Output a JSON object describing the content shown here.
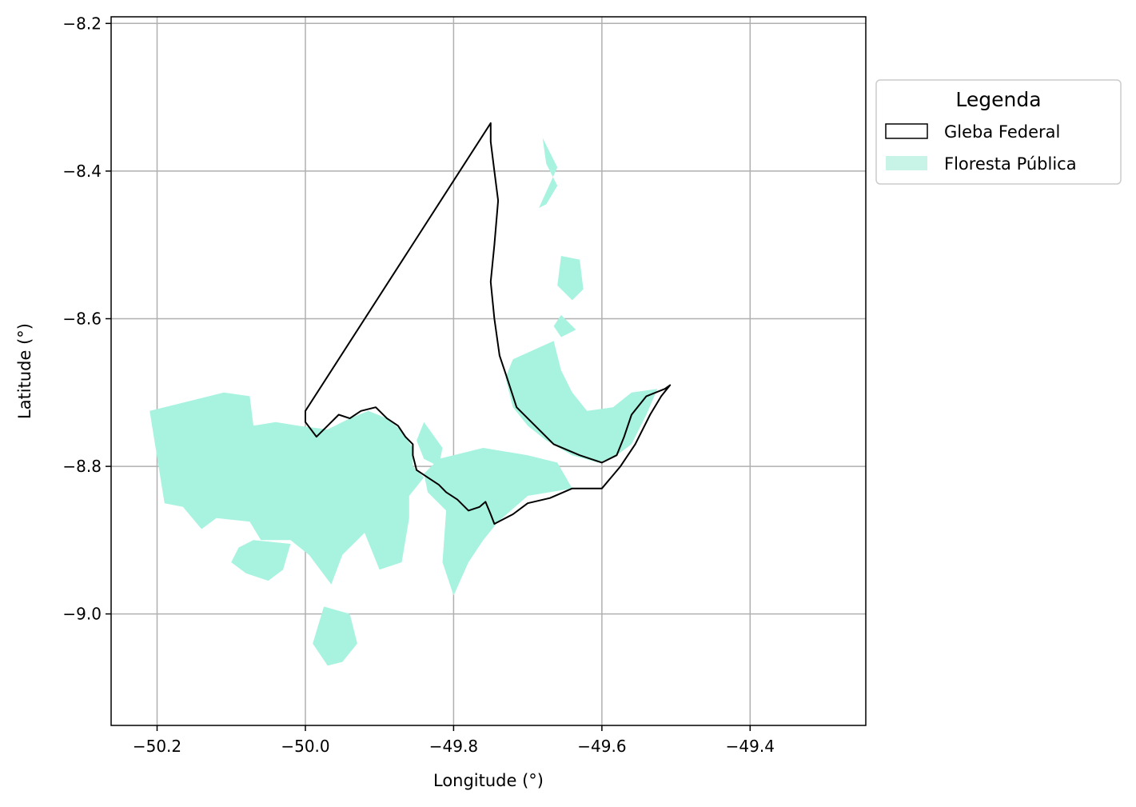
{
  "chart_data": {
    "type": "map",
    "xlabel": "Longitude (°)",
    "ylabel": "Latitude (°)",
    "xlim": [
      -50.262,
      -49.244
    ],
    "ylim": [
      -9.151,
      -8.191
    ],
    "xticks": [
      {
        "value": -50.2,
        "label": "−50.2"
      },
      {
        "value": -50.0,
        "label": "−50.0"
      },
      {
        "value": -49.8,
        "label": "−49.8"
      },
      {
        "value": -49.6,
        "label": "−49.6"
      },
      {
        "value": -49.4,
        "label": "−49.4"
      }
    ],
    "yticks": [
      {
        "value": -8.2,
        "label": "−8.2"
      },
      {
        "value": -8.4,
        "label": "−8.4"
      },
      {
        "value": -8.6,
        "label": "−8.6"
      },
      {
        "value": -8.8,
        "label": "−8.8"
      },
      {
        "value": -9.0,
        "label": "−9.0"
      }
    ],
    "grid": true,
    "legend": {
      "title": "Legenda",
      "placement": "outside-right-top",
      "entries": [
        {
          "label": "Gleba Federal",
          "kind": "outline",
          "edge": "#000000",
          "fill": "#ffffff"
        },
        {
          "label": "Floresta Pública",
          "kind": "fill",
          "fill": "#c8f4e7"
        }
      ]
    },
    "layers": [
      {
        "name": "Gleba Federal",
        "style": {
          "fill": "none",
          "stroke": "#000000"
        },
        "polygons": [
          [
            [
              -50.0,
              -8.725
            ],
            [
              -49.75,
              -8.335
            ],
            [
              -49.75,
              -8.36
            ],
            [
              -49.745,
              -8.4
            ],
            [
              -49.74,
              -8.44
            ],
            [
              -49.745,
              -8.5
            ],
            [
              -49.75,
              -8.55
            ],
            [
              -49.745,
              -8.6
            ],
            [
              -49.738,
              -8.65
            ],
            [
              -49.728,
              -8.68
            ],
            [
              -49.715,
              -8.72
            ],
            [
              -49.69,
              -8.745
            ],
            [
              -49.665,
              -8.77
            ],
            [
              -49.63,
              -8.785
            ],
            [
              -49.6,
              -8.795
            ],
            [
              -49.58,
              -8.785
            ],
            [
              -49.57,
              -8.76
            ],
            [
              -49.56,
              -8.73
            ],
            [
              -49.54,
              -8.705
            ],
            [
              -49.515,
              -8.695
            ],
            [
              -49.508,
              -8.69
            ],
            [
              -49.52,
              -8.705
            ],
            [
              -49.535,
              -8.73
            ],
            [
              -49.555,
              -8.77
            ],
            [
              -49.575,
              -8.8
            ],
            [
              -49.6,
              -8.83
            ],
            [
              -49.64,
              -8.83
            ],
            [
              -49.67,
              -8.843
            ],
            [
              -49.7,
              -8.85
            ],
            [
              -49.72,
              -8.865
            ],
            [
              -49.745,
              -8.878
            ],
            [
              -49.75,
              -8.865
            ],
            [
              -49.757,
              -8.848
            ],
            [
              -49.765,
              -8.855
            ],
            [
              -49.78,
              -8.86
            ],
            [
              -49.795,
              -8.845
            ],
            [
              -49.81,
              -8.835
            ],
            [
              -49.82,
              -8.825
            ],
            [
              -49.835,
              -8.815
            ],
            [
              -49.85,
              -8.805
            ],
            [
              -49.855,
              -8.785
            ],
            [
              -49.855,
              -8.77
            ],
            [
              -49.865,
              -8.76
            ],
            [
              -49.875,
              -8.745
            ],
            [
              -49.89,
              -8.735
            ],
            [
              -49.905,
              -8.72
            ],
            [
              -49.925,
              -8.725
            ],
            [
              -49.94,
              -8.735
            ],
            [
              -49.955,
              -8.73
            ],
            [
              -49.97,
              -8.745
            ],
            [
              -49.985,
              -8.76
            ],
            [
              -50.0,
              -8.74
            ],
            [
              -50.0,
              -8.725
            ]
          ]
        ]
      },
      {
        "name": "Floresta Pública",
        "style": {
          "fill": "#a7f3df",
          "stroke": "none"
        },
        "polygons": [
          [
            [
              -50.21,
              -8.725
            ],
            [
              -50.11,
              -8.7
            ],
            [
              -50.075,
              -8.705
            ],
            [
              -50.07,
              -8.745
            ],
            [
              -50.04,
              -8.74
            ],
            [
              -50.01,
              -8.745
            ],
            [
              -49.97,
              -8.75
            ],
            [
              -49.94,
              -8.735
            ],
            [
              -49.915,
              -8.725
            ],
            [
              -49.89,
              -8.735
            ],
            [
              -49.87,
              -8.752
            ],
            [
              -49.855,
              -8.775
            ],
            [
              -49.855,
              -8.8
            ],
            [
              -49.84,
              -8.815
            ],
            [
              -49.86,
              -8.84
            ],
            [
              -49.86,
              -8.87
            ],
            [
              -49.87,
              -8.93
            ],
            [
              -49.9,
              -8.94
            ],
            [
              -49.92,
              -8.89
            ],
            [
              -49.95,
              -8.92
            ],
            [
              -49.965,
              -8.96
            ],
            [
              -49.995,
              -8.92
            ],
            [
              -50.02,
              -8.9
            ],
            [
              -50.06,
              -8.9
            ],
            [
              -50.075,
              -8.875
            ],
            [
              -50.12,
              -8.87
            ],
            [
              -50.14,
              -8.885
            ],
            [
              -50.165,
              -8.855
            ],
            [
              -50.19,
              -8.85
            ],
            [
              -50.21,
              -8.725
            ]
          ],
          [
            [
              -50.07,
              -8.9
            ],
            [
              -50.02,
              -8.905
            ],
            [
              -50.03,
              -8.94
            ],
            [
              -50.05,
              -8.955
            ],
            [
              -50.08,
              -8.945
            ],
            [
              -50.1,
              -8.93
            ],
            [
              -50.09,
              -8.91
            ]
          ],
          [
            [
              -49.975,
              -8.99
            ],
            [
              -49.94,
              -9.0
            ],
            [
              -49.93,
              -9.04
            ],
            [
              -49.95,
              -9.065
            ],
            [
              -49.97,
              -9.07
            ],
            [
              -49.99,
              -9.04
            ]
          ],
          [
            [
              -49.82,
              -8.79
            ],
            [
              -49.76,
              -8.775
            ],
            [
              -49.7,
              -8.785
            ],
            [
              -49.66,
              -8.795
            ],
            [
              -49.64,
              -8.83
            ],
            [
              -49.7,
              -8.84
            ],
            [
              -49.74,
              -8.875
            ],
            [
              -49.76,
              -8.9
            ],
            [
              -49.78,
              -8.93
            ],
            [
              -49.8,
              -8.975
            ],
            [
              -49.815,
              -8.93
            ],
            [
              -49.81,
              -8.86
            ],
            [
              -49.835,
              -8.835
            ],
            [
              -49.84,
              -8.81
            ]
          ],
          [
            [
              -49.72,
              -8.655
            ],
            [
              -49.665,
              -8.63
            ],
            [
              -49.655,
              -8.67
            ],
            [
              -49.64,
              -8.7
            ],
            [
              -49.62,
              -8.725
            ],
            [
              -49.585,
              -8.72
            ],
            [
              -49.56,
              -8.7
            ],
            [
              -49.525,
              -8.695
            ],
            [
              -49.54,
              -8.73
            ],
            [
              -49.56,
              -8.77
            ],
            [
              -49.58,
              -8.785
            ],
            [
              -49.605,
              -8.795
            ],
            [
              -49.64,
              -8.785
            ],
            [
              -49.675,
              -8.765
            ],
            [
              -49.7,
              -8.745
            ],
            [
              -49.72,
              -8.72
            ],
            [
              -49.73,
              -8.68
            ]
          ],
          [
            [
              -49.685,
              -8.45
            ],
            [
              -49.66,
              -8.395
            ],
            [
              -49.68,
              -8.355
            ],
            [
              -49.675,
              -8.39
            ],
            [
              -49.66,
              -8.42
            ],
            [
              -49.675,
              -8.445
            ]
          ],
          [
            [
              -49.655,
              -8.515
            ],
            [
              -49.63,
              -8.52
            ],
            [
              -49.625,
              -8.56
            ],
            [
              -49.64,
              -8.575
            ],
            [
              -49.66,
              -8.555
            ]
          ],
          [
            [
              -49.655,
              -8.595
            ],
            [
              -49.635,
              -8.615
            ],
            [
              -49.655,
              -8.625
            ],
            [
              -49.665,
              -8.61
            ]
          ],
          [
            [
              -49.84,
              -8.74
            ],
            [
              -49.815,
              -8.775
            ],
            [
              -49.82,
              -8.8
            ],
            [
              -49.84,
              -8.79
            ],
            [
              -49.85,
              -8.765
            ]
          ]
        ]
      }
    ]
  }
}
